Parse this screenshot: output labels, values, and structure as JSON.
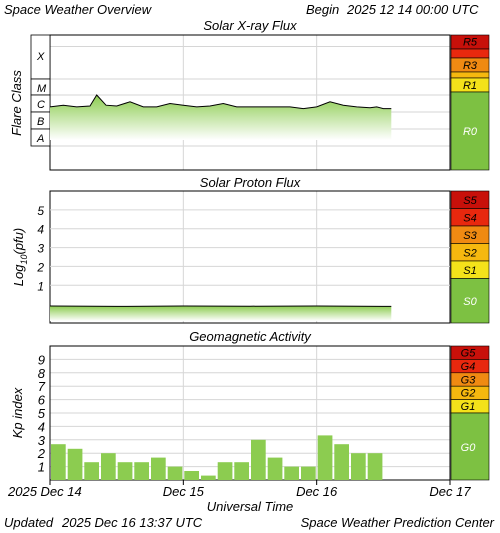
{
  "header": {
    "title": "Space Weather Overview",
    "begin_label": "Begin",
    "begin_value": "2025 12 14 00:00 UTC"
  },
  "footer": {
    "updated_label": "Updated",
    "updated_value": "2025 Dec 16 13:37 UTC",
    "credit": "Space Weather Prediction Center"
  },
  "colors": {
    "fill_green": "#8ccc50",
    "scale_green": "#7dc142",
    "yellow": "#f4e21a",
    "gold": "#f5b80f",
    "orange": "#f08a12",
    "red": "#e8280e",
    "darkred": "#c8100a"
  },
  "chart_data": [
    {
      "id": "xray",
      "type": "area",
      "title": "Solar X-ray Flux",
      "ylabel": "Flare Class",
      "y_ticks": [
        "X",
        "M",
        "C",
        "B",
        "A"
      ],
      "scale_labels": [
        "R5",
        "R3",
        "R1",
        "R0"
      ],
      "x_days": [
        0,
        0.1,
        0.2,
        0.3,
        0.35,
        0.42,
        0.5,
        0.6,
        0.7,
        0.8,
        0.9,
        1.0,
        1.1,
        1.2,
        1.3,
        1.4,
        1.5,
        1.6,
        1.7,
        1.8,
        1.9,
        2.0,
        2.1,
        2.2,
        2.3,
        2.4,
        2.45,
        2.5,
        2.56
      ],
      "flare_class_level": [
        3.3,
        3.4,
        3.3,
        3.35,
        4.0,
        3.4,
        3.35,
        3.6,
        3.3,
        3.3,
        3.5,
        3.4,
        3.3,
        3.35,
        3.5,
        3.3,
        3.3,
        3.3,
        3.3,
        3.3,
        3.2,
        3.3,
        3.6,
        3.4,
        3.3,
        3.25,
        3.3,
        3.2,
        3.2
      ]
    },
    {
      "id": "proton",
      "type": "area",
      "title": "Solar Proton Flux",
      "ylabel": "Log10(pfu)",
      "ylabel_main": "Log",
      "ylabel_sub": "10",
      "ylabel_unit": "(pfu)",
      "y_ticks": [
        "5",
        "4",
        "3",
        "2",
        "1"
      ],
      "scale_labels": [
        "S5",
        "S4",
        "S3",
        "S2",
        "S1",
        "S0"
      ],
      "ylim": [
        -1,
        6
      ],
      "x_days": [
        0,
        0.5,
        1.0,
        1.5,
        2.0,
        2.56
      ],
      "log_pfu": [
        -0.1,
        -0.12,
        -0.1,
        -0.11,
        -0.1,
        -0.12
      ]
    },
    {
      "id": "geomag",
      "type": "bar",
      "title": "Geomagnetic Activity",
      "ylabel": "Kp index",
      "y_ticks": [
        "9",
        "8",
        "7",
        "6",
        "5",
        "4",
        "3",
        "2",
        "1"
      ],
      "scale_labels": [
        "G5",
        "G4",
        "G3",
        "G2",
        "G1",
        "G0"
      ],
      "ylim": [
        0,
        10
      ],
      "kp_values": [
        2.67,
        2.33,
        1.33,
        2.0,
        1.33,
        1.33,
        1.67,
        1.0,
        0.67,
        0.33,
        1.33,
        1.33,
        3.0,
        1.67,
        1.0,
        1.0,
        3.33,
        2.67,
        2.0,
        2.0
      ],
      "xlabel": "Universal Time",
      "x_tick_labels": [
        "2025 Dec 14",
        "Dec 15",
        "Dec 16",
        "Dec 17"
      ]
    }
  ]
}
